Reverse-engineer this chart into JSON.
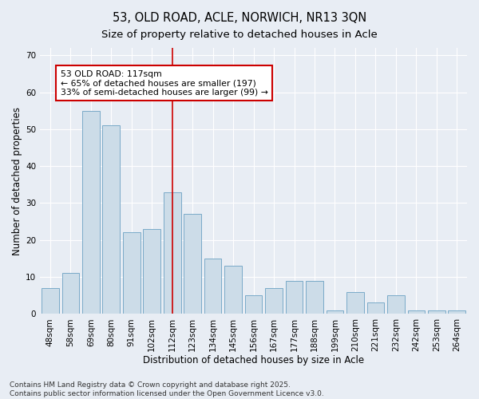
{
  "title_line1": "53, OLD ROAD, ACLE, NORWICH, NR13 3QN",
  "title_line2": "Size of property relative to detached houses in Acle",
  "xlabel": "Distribution of detached houses by size in Acle",
  "ylabel": "Number of detached properties",
  "categories": [
    "48sqm",
    "58sqm",
    "69sqm",
    "80sqm",
    "91sqm",
    "102sqm",
    "112sqm",
    "123sqm",
    "134sqm",
    "145sqm",
    "156sqm",
    "167sqm",
    "177sqm",
    "188sqm",
    "199sqm",
    "210sqm",
    "221sqm",
    "232sqm",
    "242sqm",
    "253sqm",
    "264sqm"
  ],
  "values": [
    7,
    11,
    55,
    51,
    22,
    23,
    33,
    27,
    15,
    13,
    5,
    7,
    9,
    9,
    1,
    6,
    3,
    5,
    1,
    1,
    1
  ],
  "bar_color": "#ccdce8",
  "bar_edge_color": "#7aaac8",
  "highlight_index": 6,
  "annotation_text": "53 OLD ROAD: 117sqm\n← 65% of detached houses are smaller (197)\n33% of semi-detached houses are larger (99) →",
  "annotation_box_color": "#ffffff",
  "annotation_box_edge_color": "#cc0000",
  "vline_color": "#cc0000",
  "ylim": [
    0,
    72
  ],
  "yticks": [
    0,
    10,
    20,
    30,
    40,
    50,
    60,
    70
  ],
  "background_color": "#e8edf4",
  "footer_text": "Contains HM Land Registry data © Crown copyright and database right 2025.\nContains public sector information licensed under the Open Government Licence v3.0.",
  "title_fontsize": 10.5,
  "subtitle_fontsize": 9.5,
  "axis_label_fontsize": 8.5,
  "tick_fontsize": 7.5,
  "annotation_fontsize": 7.8,
  "footer_fontsize": 6.5
}
